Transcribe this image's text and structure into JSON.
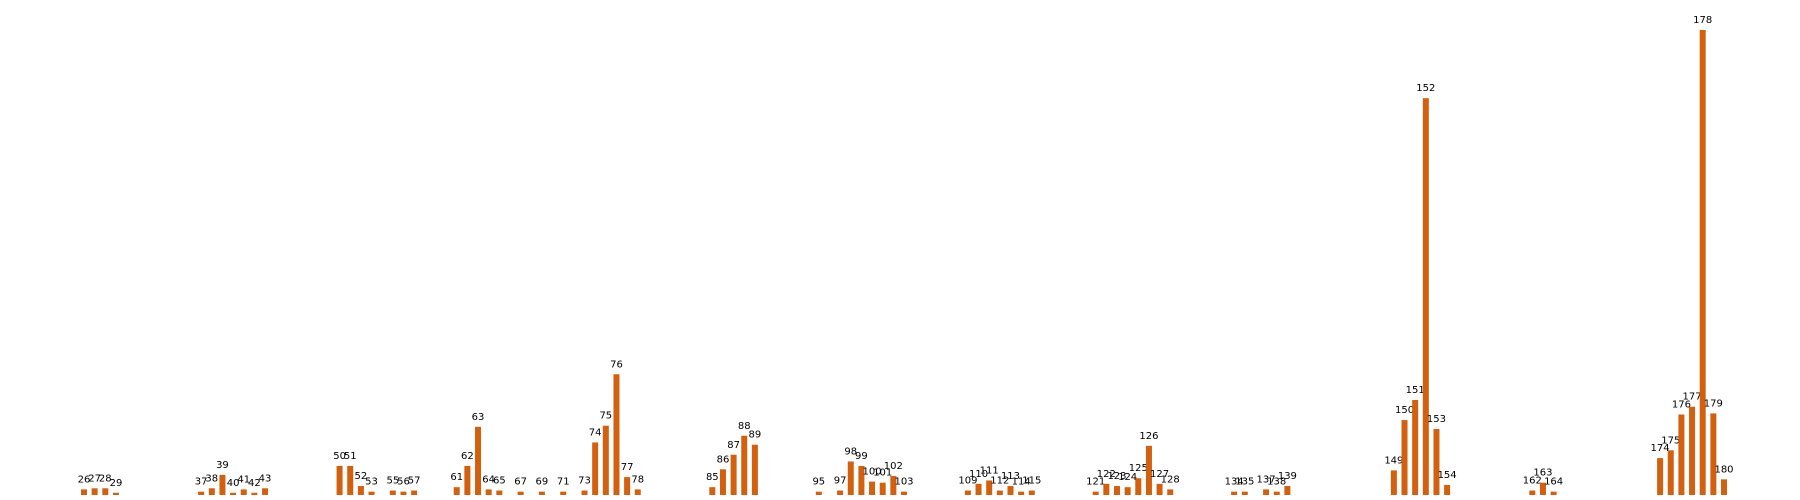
{
  "chart_data": {
    "type": "bar",
    "color": "#d2600e",
    "x": [
      26,
      27,
      28,
      29,
      37,
      38,
      39,
      40,
      41,
      42,
      43,
      50,
      51,
      52,
      53,
      55,
      56,
      57,
      61,
      62,
      63,
      64,
      65,
      67,
      69,
      71,
      73,
      74,
      75,
      76,
      77,
      78,
      85,
      86,
      87,
      88,
      89,
      95,
      97,
      98,
      99,
      100,
      101,
      102,
      103,
      109,
      110,
      111,
      112,
      113,
      114,
      115,
      121,
      122,
      123,
      124,
      125,
      126,
      127,
      128,
      134,
      135,
      137,
      138,
      139,
      149,
      150,
      151,
      152,
      153,
      154,
      162,
      163,
      164,
      174,
      175,
      176,
      177,
      178,
      179,
      180
    ],
    "values": [
      5,
      6,
      6,
      2,
      3,
      6,
      18,
      2,
      5,
      2,
      6,
      26,
      26,
      8,
      3,
      4,
      3,
      4,
      7,
      26,
      61,
      5,
      4,
      3,
      3,
      3,
      4,
      47,
      62,
      108,
      16,
      5,
      7,
      23,
      36,
      53,
      45,
      3,
      4,
      30,
      26,
      12,
      11,
      17,
      3,
      4,
      10,
      13,
      4,
      8,
      3,
      4,
      3,
      10,
      8,
      7,
      15,
      44,
      10,
      5,
      3,
      3,
      5,
      3,
      8,
      22,
      67,
      85,
      355,
      59,
      9,
      4,
      11,
      3,
      33,
      40,
      72,
      79,
      416,
      73,
      14
    ]
  }
}
